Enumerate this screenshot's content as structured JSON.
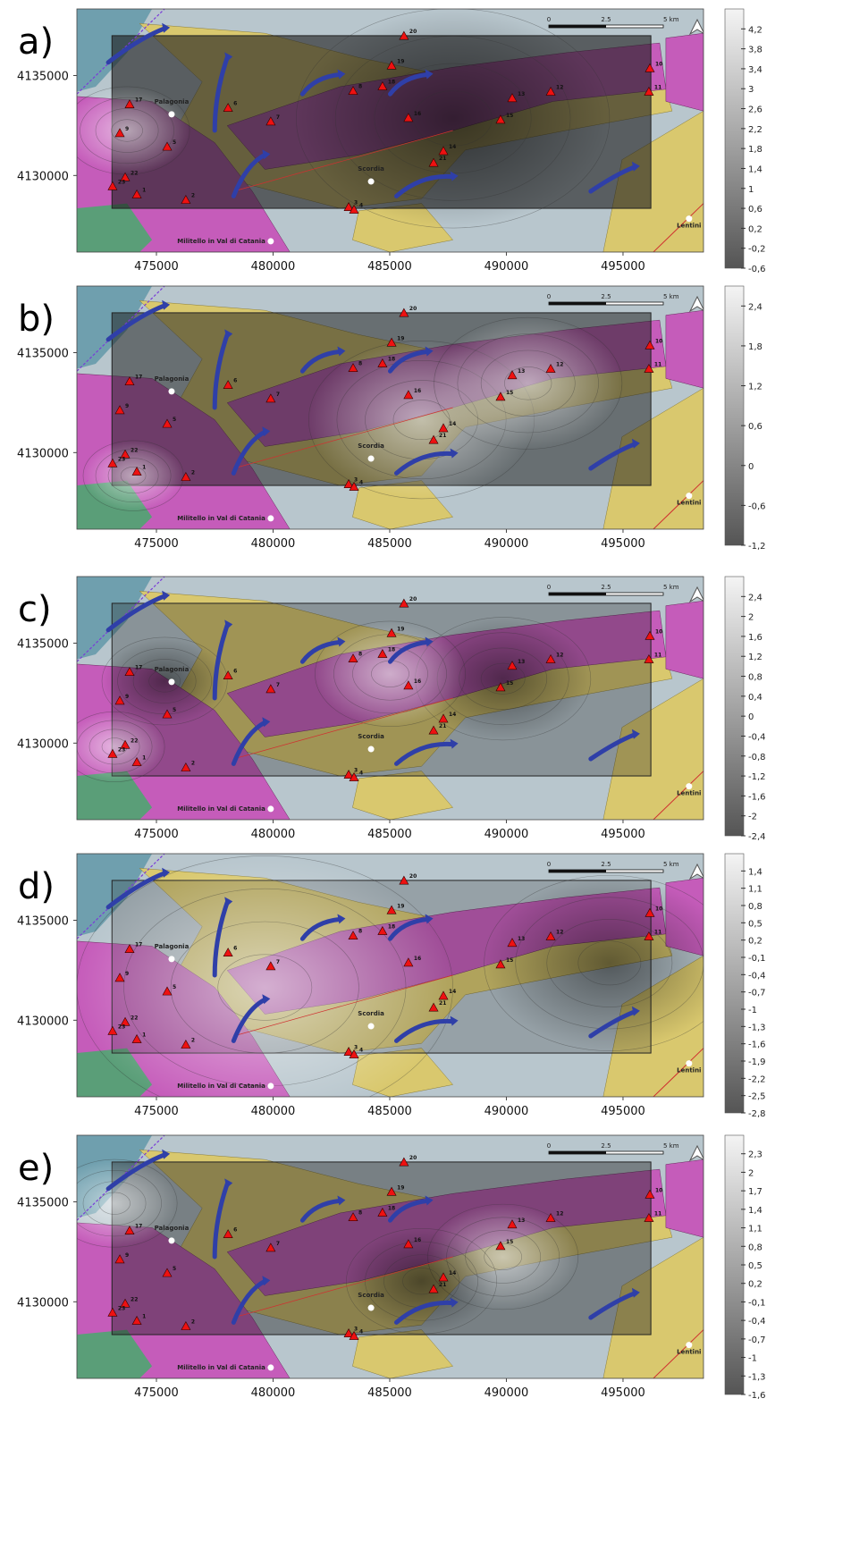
{
  "map": {
    "xlim": [
      471590,
      498450
    ],
    "ylim": [
      4126170,
      4138330
    ],
    "xticks": [
      475000,
      480000,
      485000,
      490000,
      495000
    ],
    "yticks": [
      4135000,
      4130000
    ],
    "scale_bar": [
      "0",
      "2.5",
      "5 km"
    ],
    "places": [
      {
        "name": "Palagonia",
        "x": 475650,
        "y": 4133060
      },
      {
        "name": "Scordia",
        "x": 484200,
        "y": 4129700
      },
      {
        "name": "Militello in Val di Catania",
        "x": 479900,
        "y": 4126710
      },
      {
        "name": "Lentini",
        "x": 497830,
        "y": 4127840
      }
    ],
    "stations": [
      {
        "label": "20",
        "x": 485610,
        "y": 4136980
      },
      {
        "label": "19",
        "x": 485080,
        "y": 4135500
      },
      {
        "label": "18",
        "x": 484690,
        "y": 4134460
      },
      {
        "label": "8",
        "x": 483430,
        "y": 4134230
      },
      {
        "label": "16",
        "x": 485800,
        "y": 4132880
      },
      {
        "label": "10",
        "x": 496150,
        "y": 4135360
      },
      {
        "label": "11",
        "x": 496110,
        "y": 4134190
      },
      {
        "label": "12",
        "x": 491900,
        "y": 4134190
      },
      {
        "label": "13",
        "x": 490250,
        "y": 4133870
      },
      {
        "label": "15",
        "x": 489750,
        "y": 4132790
      },
      {
        "label": "14",
        "x": 487300,
        "y": 4131220
      },
      {
        "label": "21",
        "x": 486880,
        "y": 4130630
      },
      {
        "label": "3",
        "x": 483240,
        "y": 4128420
      },
      {
        "label": "4",
        "x": 483470,
        "y": 4128290
      },
      {
        "label": "17",
        "x": 473850,
        "y": 4133560
      },
      {
        "label": "6",
        "x": 478070,
        "y": 4133380
      },
      {
        "label": "7",
        "x": 479900,
        "y": 4132700
      },
      {
        "label": "9",
        "x": 473430,
        "y": 4132120
      },
      {
        "label": "5",
        "x": 475460,
        "y": 4131440
      },
      {
        "label": "22",
        "x": 473660,
        "y": 4129910
      },
      {
        "label": "23",
        "x": 473120,
        "y": 4129460
      },
      {
        "label": "1",
        "x": 474160,
        "y": 4129050
      },
      {
        "label": "2",
        "x": 476260,
        "y": 4128780
      }
    ]
  },
  "panels": [
    {
      "label": "a)",
      "colorbar": {
        "lim": [
          -0.6,
          4.6
        ],
        "ticks": [
          {
            "value": 4.2,
            "label": "4,2"
          },
          {
            "value": 3.8,
            "label": "3,8"
          },
          {
            "value": 3.4,
            "label": "3,4"
          },
          3,
          {
            "value": 2.6,
            "label": "2,6"
          },
          {
            "value": 2.2,
            "label": "2,2"
          },
          {
            "value": 1.8,
            "label": "1,8"
          },
          {
            "value": 1.4,
            "label": "1,4"
          },
          1,
          {
            "value": 0.6,
            "label": "0,6"
          },
          {
            "value": 0.2,
            "label": "0,2"
          },
          {
            "value": -0.2,
            "label": "-0,2"
          },
          {
            "value": -0.6,
            "label": "-0,6"
          }
        ]
      }
    },
    {
      "label": "b)",
      "colorbar": {
        "lim": [
          -1.2,
          2.7
        ],
        "ticks": [
          {
            "value": 2.4,
            "label": "2,4"
          },
          {
            "value": 1.8,
            "label": "1,8"
          },
          {
            "value": 1.2,
            "label": "1,2"
          },
          {
            "value": 0.6,
            "label": "0,6"
          },
          0,
          {
            "value": -0.6,
            "label": "-0,6"
          },
          {
            "value": -1.2,
            "label": "-1,2"
          }
        ]
      }
    },
    {
      "label": "c)",
      "colorbar": {
        "lim": [
          -2.4,
          2.8
        ],
        "ticks": [
          {
            "value": 2.4,
            "label": "2,4"
          },
          2,
          {
            "value": 1.6,
            "label": "1,6"
          },
          {
            "value": 1.2,
            "label": "1,2"
          },
          {
            "value": 0.8,
            "label": "0,8"
          },
          {
            "value": 0.4,
            "label": "0,4"
          },
          0,
          {
            "value": -0.4,
            "label": "-0,4"
          },
          {
            "value": -0.8,
            "label": "-0,8"
          },
          {
            "value": -1.2,
            "label": "-1,2"
          },
          {
            "value": -1.6,
            "label": "-1,6"
          },
          -2,
          {
            "value": -2.4,
            "label": "-2,4"
          }
        ]
      }
    },
    {
      "label": "d)",
      "colorbar": {
        "lim": [
          -2.8,
          1.7
        ],
        "ticks": [
          {
            "value": 1.4,
            "label": "1,4"
          },
          {
            "value": 1.1,
            "label": "1,1"
          },
          {
            "value": 0.8,
            "label": "0,8"
          },
          {
            "value": 0.5,
            "label": "0,5"
          },
          {
            "value": 0.2,
            "label": "0,2"
          },
          {
            "value": -0.1,
            "label": "-0,1"
          },
          {
            "value": -0.4,
            "label": "-0,4"
          },
          {
            "value": -0.7,
            "label": "-0,7"
          },
          -1,
          {
            "value": -1.3,
            "label": "-1,3"
          },
          {
            "value": -1.6,
            "label": "-1,6"
          },
          {
            "value": -1.9,
            "label": "-1,9"
          },
          {
            "value": -2.2,
            "label": "-2,2"
          },
          {
            "value": -2.5,
            "label": "-2,5"
          },
          {
            "value": -2.8,
            "label": "-2,8"
          }
        ]
      }
    },
    {
      "label": "e)",
      "colorbar": {
        "lim": [
          -1.6,
          2.6
        ],
        "ticks": [
          {
            "value": 2.3,
            "label": "2,3"
          },
          2,
          {
            "value": 1.7,
            "label": "1,7"
          },
          {
            "value": 1.4,
            "label": "1,4"
          },
          {
            "value": 1.1,
            "label": "1,1"
          },
          {
            "value": 0.8,
            "label": "0,8"
          },
          {
            "value": 0.5,
            "label": "0,5"
          },
          {
            "value": 0.2,
            "label": "0,2"
          },
          {
            "value": -0.1,
            "label": "-0,1"
          },
          {
            "value": -0.4,
            "label": "-0,4"
          },
          {
            "value": -0.7,
            "label": "-0,7"
          },
          -1,
          {
            "value": -1.3,
            "label": "-1,3"
          },
          {
            "value": -1.6,
            "label": "-1,6"
          }
        ]
      }
    }
  ]
}
